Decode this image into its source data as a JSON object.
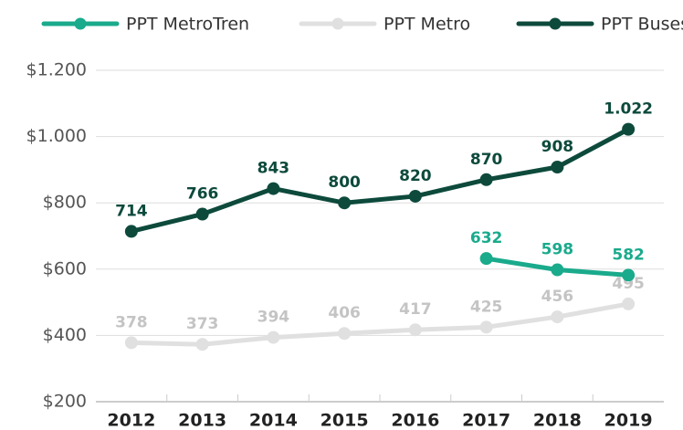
{
  "chart_data": {
    "type": "line",
    "categories": [
      "2012",
      "2013",
      "2014",
      "2015",
      "2016",
      "2017",
      "2018",
      "2019"
    ],
    "series": [
      {
        "name": "PPT MetroTren",
        "color": "#1aaa8c",
        "values": [
          null,
          null,
          null,
          null,
          null,
          632,
          598,
          582
        ]
      },
      {
        "name": "PPT Metro",
        "color": "#e0e0e0",
        "label_color": "#c4c4c4",
        "values": [
          378,
          373,
          394,
          406,
          417,
          425,
          456,
          495
        ]
      },
      {
        "name": "PPT Buses",
        "color": "#0d4a3c",
        "values": [
          714,
          766,
          843,
          800,
          820,
          870,
          908,
          1022
        ],
        "value_labels": [
          "714",
          "766",
          "843",
          "800",
          "820",
          "870",
          "908",
          "1.022"
        ]
      }
    ],
    "ylim": [
      200,
      1200
    ],
    "yticks": [
      {
        "value": 200,
        "label": "$200"
      },
      {
        "value": 400,
        "label": "$400"
      },
      {
        "value": 600,
        "label": "$600"
      },
      {
        "value": 800,
        "label": "$800"
      },
      {
        "value": 1000,
        "label": "$1.000"
      },
      {
        "value": 1200,
        "label": "$1.200"
      }
    ],
    "grid": true
  }
}
